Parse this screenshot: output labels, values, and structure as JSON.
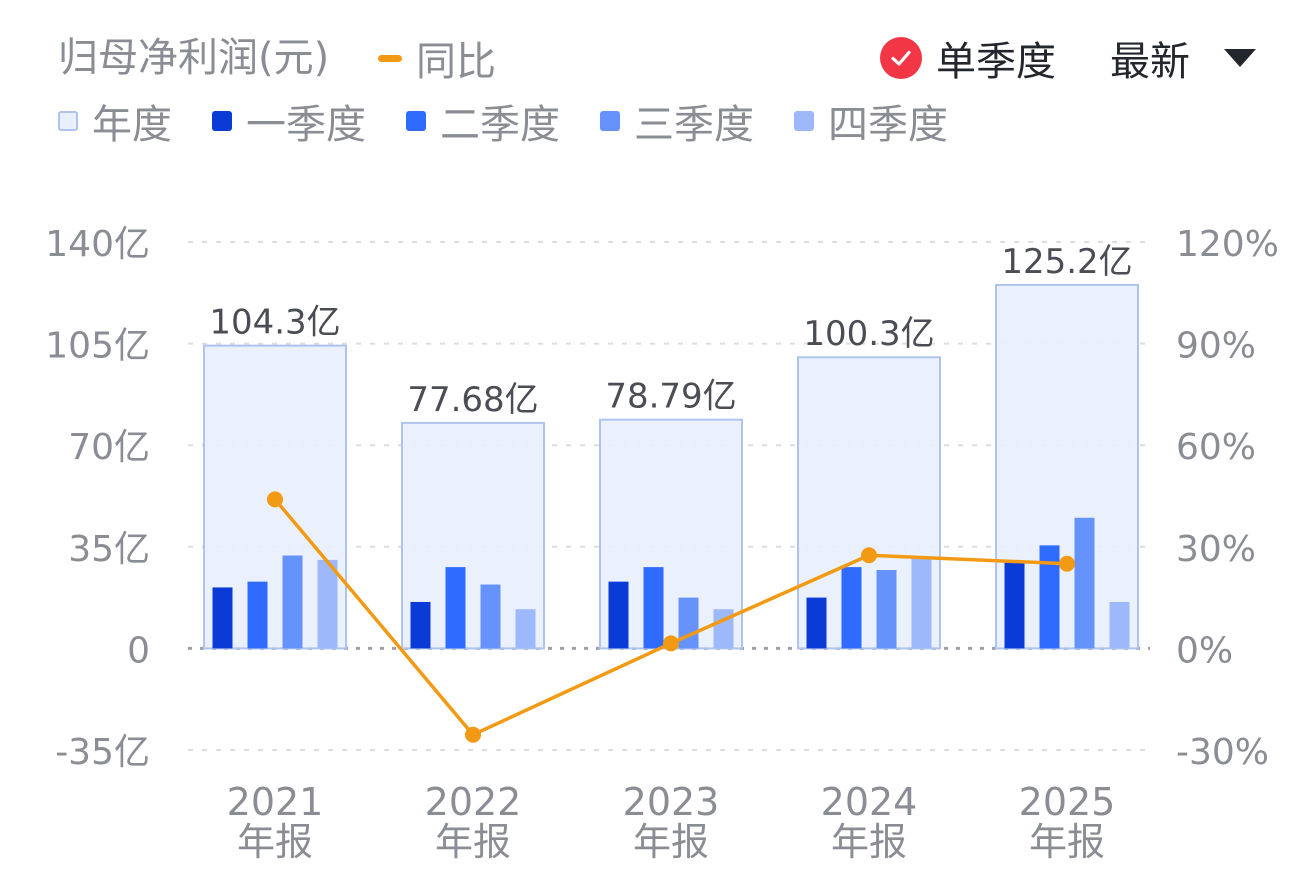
{
  "header": {
    "title": "归母净利润(元)",
    "yoy_label": "同比",
    "single_quarter_label": "单季度",
    "latest_label": "最新"
  },
  "legend": [
    {
      "label": "年度",
      "color": "#e8effd",
      "border": "#aec4ef"
    },
    {
      "label": "一季度",
      "color": "#0a3bd7"
    },
    {
      "label": "二季度",
      "color": "#2f6bff"
    },
    {
      "label": "三季度",
      "color": "#6692fb"
    },
    {
      "label": "四季度",
      "color": "#9db8fb"
    }
  ],
  "colors": {
    "yoy_line": "#f39a14",
    "check": "#f23645",
    "grid": "#dcdde0",
    "zero_line": "#9ea1a7"
  },
  "chart_data": {
    "type": "bar",
    "categories": [
      "2021\n年报",
      "2022\n年报",
      "2023\n年报",
      "2024\n年报",
      "2025\n年报"
    ],
    "category_lines": [
      [
        "2021",
        "年报"
      ],
      [
        "2022",
        "年报"
      ],
      [
        "2023",
        "年报"
      ],
      [
        "2024",
        "年报"
      ],
      [
        "2025",
        "年报"
      ]
    ],
    "annual": [
      104.3,
      77.68,
      78.79,
      100.3,
      125.2
    ],
    "annual_labels": [
      "104.3亿",
      "77.68亿",
      "78.79亿",
      "100.3亿",
      "125.2亿"
    ],
    "quarters": [
      [
        21,
        23,
        32,
        30.5
      ],
      [
        16,
        28,
        22,
        13.5
      ],
      [
        23,
        28,
        17.5,
        13.5
      ],
      [
        17.5,
        28,
        27,
        31
      ],
      [
        30,
        35.5,
        45,
        16
      ]
    ],
    "series": [
      {
        "name": "同比",
        "values": [
          44,
          -25.5,
          1.5,
          27.5,
          25
        ]
      }
    ],
    "ylim": [
      -35,
      140
    ],
    "yticks": [
      "-35亿",
      "0",
      "35亿",
      "70亿",
      "105亿",
      "140亿"
    ],
    "ytick_values": [
      -35,
      0,
      35,
      70,
      105,
      140
    ],
    "y2lim": [
      -30,
      120
    ],
    "y2ticks": [
      "-30%",
      "0%",
      "30%",
      "60%",
      "90%",
      "120%"
    ],
    "y2tick_values": [
      -30,
      0,
      30,
      60,
      90,
      120
    ],
    "grid": true,
    "legend_position": "top-left"
  }
}
